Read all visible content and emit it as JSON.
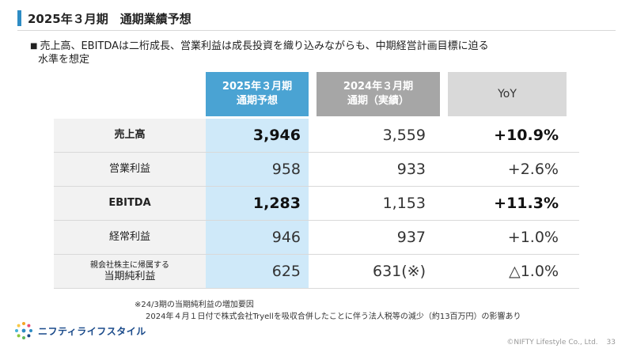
{
  "title": "2025年３月期　通期業績予想",
  "bullet": {
    "mark": "■",
    "line1": "売上高、EBITDAは二桁成長、営業利益は成長投資を織り込みながらも、中期経営計画目標に迫る",
    "line2": "水準を想定"
  },
  "table": {
    "headers": {
      "col2025": {
        "line1": "2025年３月期",
        "line2": "通期予想"
      },
      "col2024": {
        "line1": "2024年３月期",
        "line2": "通期（実績）"
      },
      "yoy": "YoY"
    },
    "rows": [
      {
        "label": "売上高",
        "v2025": "3,946",
        "v2024": "3,559",
        "yoy": "+10.9%"
      },
      {
        "label": "営業利益",
        "v2025": "958",
        "v2024": "933",
        "yoy": "+2.6%"
      },
      {
        "label": "EBITDA",
        "v2025": "1,283",
        "v2024": "1,153",
        "yoy": "+11.3%"
      },
      {
        "label": "経常利益",
        "v2025": "946",
        "v2024": "937",
        "yoy": "+1.0%"
      },
      {
        "label_small": "親会社株主に帰属する",
        "label": "当期純利益",
        "v2025": "625",
        "v2024": "631(※)",
        "yoy": "△1.0%"
      }
    ]
  },
  "notes": {
    "line1": "※24/3期の当期純利益の増加要因",
    "line2": "2024年４月１日付で株式会社Tryellを吸収合併したことに伴う法人税等の減少（約13百万円）の影響あり"
  },
  "logo": {
    "text": "ニフティライフスタイル"
  },
  "footer": {
    "copyright": "©NIFTY Lifestyle Co., Ltd.",
    "page": "33"
  },
  "colors": {
    "accent": "#2e8cc4",
    "col2025_header": "#4aa3d3",
    "col2025_body": "#cfe9f9",
    "col2024_header": "#a6a6a6"
  }
}
